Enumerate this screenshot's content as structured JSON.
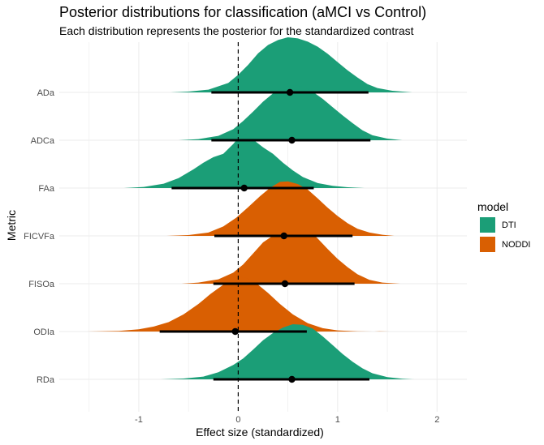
{
  "chart_data": {
    "type": "ridgeline",
    "title": "Posterior distributions for classification (aMCI vs Control)",
    "subtitle": "Each distribution represents the posterior for the standardized contrast",
    "xlabel": "Effect size (standardized)",
    "ylabel": "Metric",
    "xlim": [
      -1.8,
      2.3
    ],
    "xticks": [
      -1,
      0,
      1,
      2
    ],
    "reference_line_x": 0,
    "grid": true,
    "legend": {
      "title": "model",
      "position": "right",
      "entries": [
        {
          "label": "DTI",
          "color": "#1B9E77"
        },
        {
          "label": "NODDI",
          "color": "#D95F02"
        }
      ]
    },
    "series": [
      {
        "metric": "ADa",
        "model": "DTI",
        "point": 0.52,
        "interval": [
          -0.27,
          1.31
        ],
        "range": [
          -0.68,
          1.75
        ],
        "density": [
          [
            -0.68,
            0.0
          ],
          [
            -0.5,
            0.015
          ],
          [
            -0.3,
            0.05
          ],
          [
            -0.1,
            0.17
          ],
          [
            0.0,
            0.32
          ],
          [
            0.1,
            0.5
          ],
          [
            0.2,
            0.71
          ],
          [
            0.3,
            0.86
          ],
          [
            0.4,
            0.95
          ],
          [
            0.5,
            1.0
          ],
          [
            0.6,
            0.98
          ],
          [
            0.7,
            0.92
          ],
          [
            0.8,
            0.83
          ],
          [
            0.9,
            0.7
          ],
          [
            1.0,
            0.55
          ],
          [
            1.1,
            0.4
          ],
          [
            1.2,
            0.27
          ],
          [
            1.3,
            0.15
          ],
          [
            1.4,
            0.08
          ],
          [
            1.55,
            0.03
          ],
          [
            1.75,
            0.0
          ]
        ]
      },
      {
        "metric": "ADCa",
        "model": "DTI",
        "point": 0.54,
        "interval": [
          -0.27,
          1.33
        ],
        "range": [
          -0.6,
          1.65
        ],
        "density": [
          [
            -0.6,
            0.0
          ],
          [
            -0.4,
            0.02
          ],
          [
            -0.2,
            0.08
          ],
          [
            -0.05,
            0.2
          ],
          [
            0.05,
            0.35
          ],
          [
            0.15,
            0.52
          ],
          [
            0.25,
            0.7
          ],
          [
            0.35,
            0.85
          ],
          [
            0.45,
            0.96
          ],
          [
            0.55,
            1.0
          ],
          [
            0.65,
            0.97
          ],
          [
            0.75,
            0.88
          ],
          [
            0.85,
            0.75
          ],
          [
            0.95,
            0.6
          ],
          [
            1.05,
            0.45
          ],
          [
            1.15,
            0.31
          ],
          [
            1.25,
            0.18
          ],
          [
            1.35,
            0.09
          ],
          [
            1.5,
            0.03
          ],
          [
            1.65,
            0.0
          ]
        ]
      },
      {
        "metric": "FAa",
        "model": "DTI",
        "point": 0.06,
        "interval": [
          -0.67,
          0.76
        ],
        "range": [
          -1.15,
          1.27
        ],
        "density": [
          [
            -1.15,
            0.0
          ],
          [
            -0.95,
            0.02
          ],
          [
            -0.75,
            0.08
          ],
          [
            -0.6,
            0.18
          ],
          [
            -0.45,
            0.34
          ],
          [
            -0.35,
            0.46
          ],
          [
            -0.25,
            0.56
          ],
          [
            -0.15,
            0.62
          ],
          [
            -0.05,
            0.8
          ],
          [
            0.02,
            0.95
          ],
          [
            0.08,
            0.98
          ],
          [
            0.15,
            0.88
          ],
          [
            0.25,
            0.74
          ],
          [
            0.35,
            0.62
          ],
          [
            0.45,
            0.46
          ],
          [
            0.55,
            0.32
          ],
          [
            0.65,
            0.2
          ],
          [
            0.8,
            0.09
          ],
          [
            0.95,
            0.04
          ],
          [
            1.1,
            0.015
          ],
          [
            1.27,
            0.0
          ]
        ]
      },
      {
        "metric": "FICVFa",
        "model": "NODDI",
        "point": 0.46,
        "interval": [
          -0.24,
          1.15
        ],
        "range": [
          -0.72,
          1.57
        ],
        "density": [
          [
            -0.72,
            0.0
          ],
          [
            -0.5,
            0.015
          ],
          [
            -0.3,
            0.06
          ],
          [
            -0.15,
            0.17
          ],
          [
            -0.02,
            0.33
          ],
          [
            0.1,
            0.52
          ],
          [
            0.22,
            0.72
          ],
          [
            0.32,
            0.87
          ],
          [
            0.42,
            0.98
          ],
          [
            0.5,
            0.99
          ],
          [
            0.6,
            0.94
          ],
          [
            0.7,
            0.84
          ],
          [
            0.8,
            0.68
          ],
          [
            0.9,
            0.51
          ],
          [
            1.0,
            0.36
          ],
          [
            1.1,
            0.23
          ],
          [
            1.2,
            0.13
          ],
          [
            1.32,
            0.06
          ],
          [
            1.45,
            0.02
          ],
          [
            1.57,
            0.0
          ]
        ]
      },
      {
        "metric": "FISOa",
        "model": "NODDI",
        "point": 0.47,
        "interval": [
          -0.25,
          1.17
        ],
        "range": [
          -0.57,
          1.63
        ],
        "density": [
          [
            -0.57,
            0.0
          ],
          [
            -0.4,
            0.02
          ],
          [
            -0.2,
            0.08
          ],
          [
            -0.05,
            0.2
          ],
          [
            0.05,
            0.35
          ],
          [
            0.15,
            0.55
          ],
          [
            0.25,
            0.75
          ],
          [
            0.35,
            0.87
          ],
          [
            0.45,
            0.93
          ],
          [
            0.5,
            0.88
          ],
          [
            0.56,
            0.9
          ],
          [
            0.65,
            0.98
          ],
          [
            0.72,
            0.95
          ],
          [
            0.8,
            0.82
          ],
          [
            0.9,
            0.63
          ],
          [
            1.0,
            0.45
          ],
          [
            1.1,
            0.3
          ],
          [
            1.2,
            0.17
          ],
          [
            1.32,
            0.07
          ],
          [
            1.45,
            0.02
          ],
          [
            1.63,
            0.0
          ]
        ]
      },
      {
        "metric": "ODIa",
        "model": "NODDI",
        "point": -0.03,
        "interval": [
          -0.79,
          0.69
        ],
        "range": [
          -1.52,
          1.52
        ],
        "density": [
          [
            -1.52,
            0.0
          ],
          [
            -1.2,
            0.01
          ],
          [
            -1.0,
            0.04
          ],
          [
            -0.85,
            0.09
          ],
          [
            -0.7,
            0.17
          ],
          [
            -0.55,
            0.31
          ],
          [
            -0.4,
            0.5
          ],
          [
            -0.28,
            0.68
          ],
          [
            -0.15,
            0.85
          ],
          [
            -0.05,
            0.97
          ],
          [
            0.0,
            1.0
          ],
          [
            0.08,
            0.97
          ],
          [
            0.18,
            0.88
          ],
          [
            0.3,
            0.7
          ],
          [
            0.42,
            0.5
          ],
          [
            0.55,
            0.31
          ],
          [
            0.7,
            0.15
          ],
          [
            0.85,
            0.06
          ],
          [
            1.0,
            0.02
          ],
          [
            1.2,
            0.005
          ],
          [
            1.35,
            0.0
          ],
          [
            1.37,
            0.0
          ],
          [
            1.42,
            0.003
          ],
          [
            1.52,
            0.0
          ]
        ]
      },
      {
        "metric": "RDa",
        "model": "DTI",
        "point": 0.54,
        "interval": [
          -0.25,
          1.32
        ],
        "range": [
          -0.78,
          1.77
        ],
        "density": [
          [
            -0.78,
            0.0
          ],
          [
            -0.55,
            0.015
          ],
          [
            -0.35,
            0.05
          ],
          [
            -0.2,
            0.13
          ],
          [
            -0.05,
            0.26
          ],
          [
            0.05,
            0.38
          ],
          [
            0.15,
            0.54
          ],
          [
            0.25,
            0.71
          ],
          [
            0.35,
            0.84
          ],
          [
            0.45,
            0.94
          ],
          [
            0.55,
            1.0
          ],
          [
            0.65,
            0.99
          ],
          [
            0.75,
            0.92
          ],
          [
            0.85,
            0.78
          ],
          [
            0.95,
            0.62
          ],
          [
            1.05,
            0.46
          ],
          [
            1.15,
            0.32
          ],
          [
            1.25,
            0.2
          ],
          [
            1.35,
            0.11
          ],
          [
            1.5,
            0.04
          ],
          [
            1.65,
            0.01
          ],
          [
            1.77,
            0.0
          ]
        ]
      }
    ]
  }
}
